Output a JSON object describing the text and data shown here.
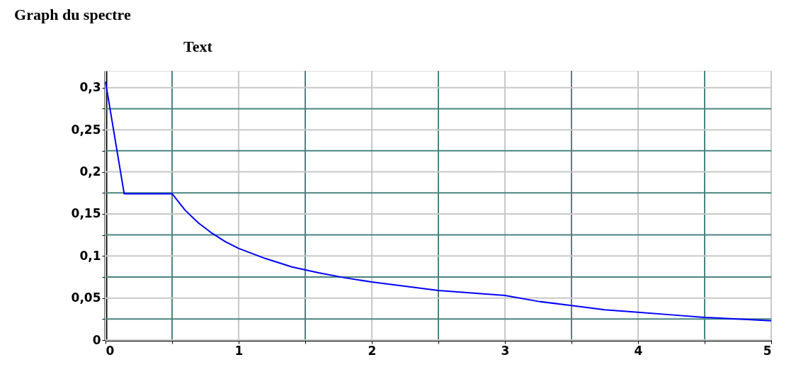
{
  "chart_data": {
    "type": "line",
    "title": "Graph du spectre",
    "annotations": [
      "Text"
    ],
    "x": [
      0,
      0.14,
      0.5,
      0.6,
      0.7,
      0.8,
      0.9,
      1,
      1.2,
      1.4,
      1.6,
      1.8,
      2,
      2.25,
      2.5,
      2.75,
      3,
      3.25,
      3.5,
      3.75,
      4,
      4.25,
      4.5,
      4.75,
      5
    ],
    "series": [
      {
        "color": "#0000ff",
        "values": [
          0.307,
          0.174,
          0.174,
          0.154,
          0.139,
          0.127,
          0.117,
          0.109,
          0.097,
          0.087,
          0.08,
          0.074,
          0.069,
          0.064,
          0.059,
          0.056,
          0.053,
          0.046,
          0.041,
          0.036,
          0.033,
          0.03,
          0.027,
          0.025,
          0.023
        ]
      }
    ],
    "xlim": [
      0,
      5
    ],
    "ylim": [
      0,
      0.32
    ],
    "xticks": [
      0,
      {
        "value": 0.5,
        "label": null
      },
      1,
      {
        "value": 1.5,
        "label": null
      },
      2,
      {
        "value": 2.5,
        "label": null
      },
      3,
      {
        "value": 3.5,
        "label": null
      },
      4,
      {
        "value": 4.5,
        "label": null
      },
      5
    ],
    "yticks": [
      {
        "value": 0,
        "label": "0"
      },
      {
        "value": 0.025,
        "label": null
      },
      {
        "value": 0.05,
        "label": "0,05"
      },
      {
        "value": 0.075,
        "label": null
      },
      {
        "value": 0.1,
        "label": "0,1"
      },
      {
        "value": 0.125,
        "label": null
      },
      {
        "value": 0.15,
        "label": "0,15"
      },
      {
        "value": 0.175,
        "label": null
      },
      {
        "value": 0.2,
        "label": "0,2"
      },
      {
        "value": 0.225,
        "label": null
      },
      {
        "value": 0.25,
        "label": "0,25"
      },
      {
        "value": 0.275,
        "label": null
      },
      {
        "value": 0.3,
        "label": "0,3"
      }
    ],
    "grid": true,
    "line_style": "solid"
  }
}
